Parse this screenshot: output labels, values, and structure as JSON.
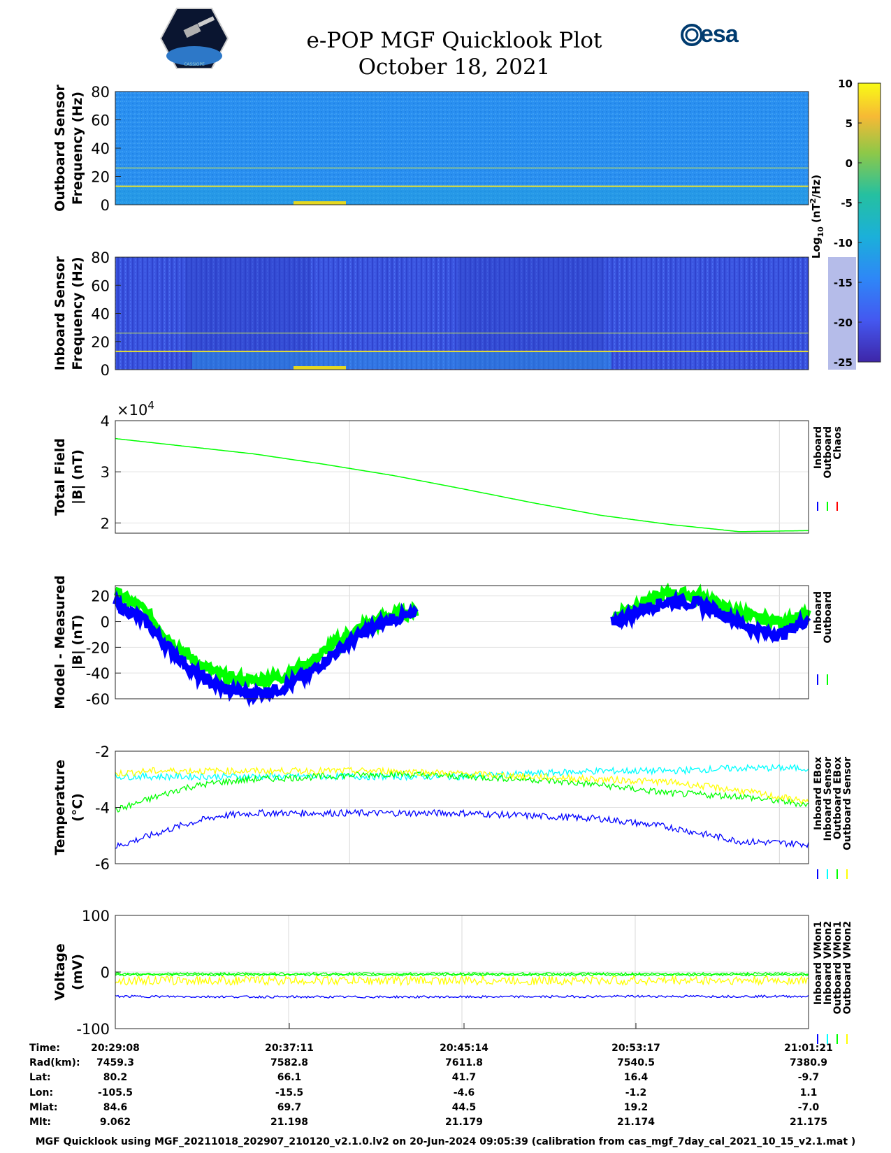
{
  "header": {
    "title": "e-POP MGF Quicklook Plot",
    "date": "October 18, 2021",
    "esa_logo_text": "esa",
    "mission_logo_text": "CASSIOPE"
  },
  "colors": {
    "inboard": "#0000ff",
    "outboard": "#00ff00",
    "chaos": "#ff0000",
    "cyan": "#00ffff",
    "yellow": "#ffff00"
  },
  "colorbar": {
    "label": "Log10 (nT2/Hz)",
    "label_main": "Log",
    "label_sub": "10",
    "label_paren_open": "(nT",
    "label_sup": "2",
    "label_paren_close": "/Hz)",
    "ticks": [
      "10",
      "5",
      "0",
      "-5",
      "-10",
      "-15",
      "-20",
      "-25"
    ],
    "range": [
      -25,
      10
    ]
  },
  "chart_data": [
    {
      "type": "heatmap",
      "ylabel_line1": "Outboard Sensor",
      "ylabel_line2": "Frequency (Hz)",
      "ylim": [
        0,
        80
      ],
      "yticks": [
        "80",
        "60",
        "40",
        "20",
        "0"
      ],
      "background_log_psd": -11,
      "lines_hz": [
        13,
        26
      ]
    },
    {
      "type": "heatmap",
      "ylabel_line1": "Inboard Sensor",
      "ylabel_line2": "Frequency (Hz)",
      "ylim": [
        0,
        80
      ],
      "yticks": [
        "80",
        "60",
        "40",
        "20",
        "0"
      ],
      "background_log_psd": -18,
      "lines_hz": [
        13,
        26
      ]
    },
    {
      "type": "line",
      "ylabel_line1": "Total Field",
      "ylabel_line2": "|B| (nT)",
      "ylim": [
        1.8,
        4
      ],
      "yticks": [
        "4",
        "3",
        "2"
      ],
      "exponent_base": "×10",
      "exponent_power": "4",
      "legend": [
        "Inboard",
        "Outboard",
        "Chaos"
      ],
      "x": [
        0,
        0.1,
        0.2,
        0.3,
        0.4,
        0.5,
        0.6,
        0.7,
        0.8,
        0.9,
        1.0
      ],
      "series": [
        {
          "name": "Outboard",
          "values": [
            3.65,
            3.5,
            3.35,
            3.15,
            2.93,
            2.67,
            2.4,
            2.15,
            1.97,
            1.83,
            1.85
          ]
        }
      ]
    },
    {
      "type": "line",
      "ylabel_line1": "Model - Measured",
      "ylabel_line2": "|B| (nT)",
      "ylim": [
        -60,
        28
      ],
      "yticks": [
        "20",
        "0",
        "-20",
        "-40",
        "-60"
      ],
      "legend": [
        "Inboard",
        "Outboard"
      ],
      "x": [
        0,
        0.04,
        0.08,
        0.12,
        0.16,
        0.2,
        0.24,
        0.28,
        0.32,
        0.36,
        0.4,
        0.44,
        0.48,
        0.72,
        0.76,
        0.8,
        0.84,
        0.88,
        0.92,
        0.96,
        1.0
      ],
      "series": [
        {
          "name": "Outboard",
          "values": [
            22,
            10,
            -15,
            -33,
            -44,
            -46,
            -43,
            -32,
            -16,
            -3,
            5,
            8,
            9,
            4,
            15,
            22,
            20,
            10,
            3,
            0,
            5
          ]
        },
        {
          "name": "Inboard",
          "values": [
            14,
            2,
            -22,
            -42,
            -53,
            -56,
            -52,
            -40,
            -23,
            -8,
            2,
            6,
            7,
            0,
            10,
            16,
            14,
            5,
            -6,
            -10,
            2
          ]
        }
      ]
    },
    {
      "type": "line",
      "ylabel_line1": "Temperature",
      "ylabel_line2": "(°C)",
      "ylim": [
        -6,
        -2
      ],
      "yticks": [
        "-2",
        "-4",
        "-6"
      ],
      "legend": [
        "Inboard EBox",
        "Inboard Sensor",
        "Outboard EBox",
        "Outboard Sensor"
      ],
      "x": [
        0,
        0.05,
        0.1,
        0.15,
        0.2,
        0.3,
        0.4,
        0.5,
        0.6,
        0.7,
        0.8,
        0.9,
        1.0
      ],
      "series": [
        {
          "name": "Inboard EBox",
          "values": [
            -5.4,
            -5.0,
            -4.6,
            -4.3,
            -4.2,
            -4.2,
            -4.2,
            -4.2,
            -4.3,
            -4.4,
            -4.7,
            -5.2,
            -5.3
          ]
        },
        {
          "name": "Inboard Sensor",
          "values": [
            -2.9,
            -2.9,
            -2.9,
            -2.9,
            -2.9,
            -2.9,
            -2.9,
            -2.9,
            -2.8,
            -2.7,
            -2.7,
            -2.6,
            -2.6
          ]
        },
        {
          "name": "Outboard EBox",
          "values": [
            -4.1,
            -3.7,
            -3.3,
            -3.1,
            -3.0,
            -2.9,
            -2.8,
            -2.9,
            -3.0,
            -3.2,
            -3.5,
            -3.6,
            -3.9
          ]
        },
        {
          "name": "Outboard Sensor",
          "values": [
            -2.8,
            -2.7,
            -2.7,
            -2.7,
            -2.7,
            -2.7,
            -2.7,
            -2.8,
            -2.9,
            -3.0,
            -3.1,
            -3.4,
            -3.8
          ]
        }
      ]
    },
    {
      "type": "line",
      "ylabel_line1": "Voltage",
      "ylabel_line2": "(mV)",
      "ylim": [
        -100,
        100
      ],
      "yticks": [
        "100",
        "0",
        "-100"
      ],
      "legend": [
        "Inboard VMon1",
        "Inboard VMon2",
        "Outboard VMon1",
        "Outboard VMon2"
      ],
      "x": [
        0,
        0.25,
        0.5,
        0.75,
        1.0
      ],
      "series": [
        {
          "name": "Inboard VMon1",
          "values": [
            -43,
            -44,
            -44,
            -43,
            -43
          ]
        },
        {
          "name": "Inboard VMon2",
          "values": [
            -5,
            -5,
            -5,
            -5,
            -5
          ]
        },
        {
          "name": "Outboard VMon1",
          "values": [
            -3,
            -3,
            -3,
            -3,
            -3
          ]
        },
        {
          "name": "Outboard VMon2",
          "values": [
            -15,
            -15,
            -15,
            -15,
            -15
          ]
        }
      ]
    }
  ],
  "info_table": {
    "labels": [
      "Time:",
      "Rad(km):",
      "Lat:",
      "Lon:",
      "Mlat:",
      "Mlt:"
    ],
    "columns": [
      [
        "20:29:08",
        "7459.3",
        "80.2",
        "-105.5",
        "84.6",
        "9.062"
      ],
      [
        "20:37:11",
        "7582.8",
        "66.1",
        "-15.5",
        "69.7",
        "21.198"
      ],
      [
        "20:45:14",
        "7611.8",
        "41.7",
        "-4.6",
        "44.5",
        "21.179"
      ],
      [
        "20:53:17",
        "7540.5",
        "16.4",
        "-1.2",
        "19.2",
        "21.174"
      ],
      [
        "21:01:21",
        "7380.9",
        "-9.7",
        "1.1",
        "-7.0",
        "21.175"
      ]
    ]
  },
  "footer": "MGF Quicklook using MGF_20211018_202907_210120_v2.1.0.lv2 on 20-Jun-2024 09:05:39 (calibration from cas_mgf_7day_cal_2021_10_15_v2.1.mat )"
}
